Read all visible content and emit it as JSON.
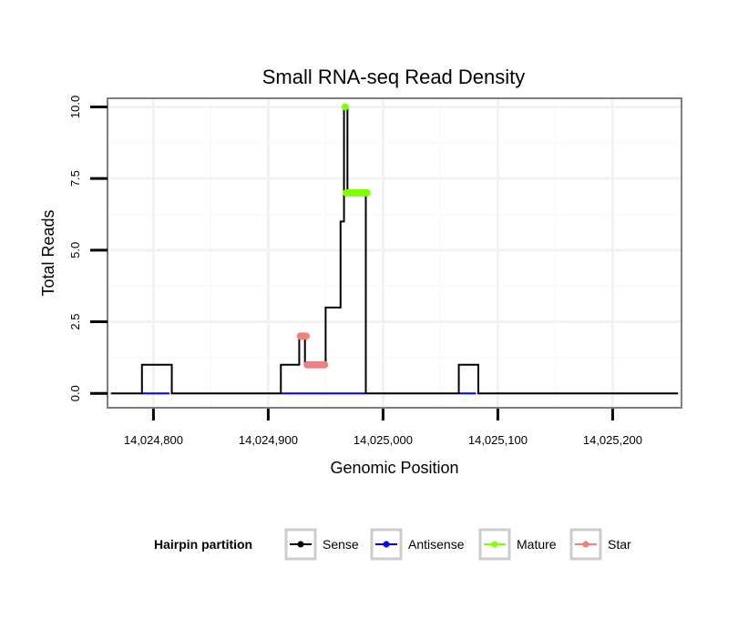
{
  "chart_data": {
    "type": "line",
    "title": "Small RNA-seq Read Density",
    "xlabel": "Genomic Position",
    "ylabel": "Total Reads",
    "xlim": [
      14024760,
      14025260
    ],
    "ylim": [
      -0.5,
      10.3
    ],
    "x_ticks": [
      14024800,
      14024900,
      14025000,
      14025100,
      14025200
    ],
    "x_tick_labels": [
      "14,024,800",
      "14,024,900",
      "14,025,000",
      "14,025,100",
      "14,025,200"
    ],
    "y_ticks": [
      0,
      2.5,
      5,
      7.5,
      10
    ],
    "y_tick_labels": [
      "0.0",
      "2.5",
      "5.0",
      "7.5",
      "10.0"
    ],
    "grid": true,
    "legend": {
      "title": "Hairpin partition",
      "position": "bottom",
      "entries": [
        "Sense",
        "Antisense",
        "Mature",
        "Star"
      ]
    },
    "series": [
      {
        "name": "Sense",
        "color": "#000000",
        "marker": "line",
        "points": [
          [
            14024763,
            0
          ],
          [
            14024790,
            0
          ],
          [
            14024790,
            1
          ],
          [
            14024816,
            1
          ],
          [
            14024816,
            0
          ],
          [
            14024911,
            0
          ],
          [
            14024911,
            1
          ],
          [
            14024927,
            1
          ],
          [
            14024927,
            2
          ],
          [
            14024932,
            2
          ],
          [
            14024932,
            1
          ],
          [
            14024950,
            1
          ],
          [
            14024950,
            3
          ],
          [
            14024963,
            3
          ],
          [
            14024963,
            6
          ],
          [
            14024966,
            6
          ],
          [
            14024966,
            10
          ],
          [
            14024969,
            10
          ],
          [
            14024969,
            7
          ],
          [
            14024985,
            7
          ],
          [
            14024985,
            0
          ],
          [
            14025066,
            0
          ],
          [
            14025066,
            1
          ],
          [
            14025083,
            1
          ],
          [
            14025083,
            0
          ],
          [
            14025257,
            0
          ]
        ]
      },
      {
        "name": "Antisense",
        "color": "#0000ff",
        "marker": "line",
        "segments": [
          [
            [
              14024790,
              0
            ],
            [
              14024814,
              0
            ]
          ],
          [
            [
              14024911,
              0
            ],
            [
              14024985,
              0
            ]
          ],
          [
            [
              14025066,
              0
            ],
            [
              14025081,
              0
            ]
          ]
        ]
      },
      {
        "name": "Mature",
        "color": "#7fff00",
        "marker": "points",
        "points": [
          [
            14024967,
            10
          ],
          [
            14024968,
            7
          ],
          [
            14024970,
            7
          ],
          [
            14024972,
            7
          ],
          [
            14024974,
            7
          ],
          [
            14024976,
            7
          ],
          [
            14024978,
            7
          ],
          [
            14024980,
            7
          ],
          [
            14024982,
            7
          ],
          [
            14024984,
            7
          ],
          [
            14024986,
            7
          ]
        ]
      },
      {
        "name": "Star",
        "color": "#f08080",
        "marker": "points",
        "points": [
          [
            14024928,
            2
          ],
          [
            14024929,
            2
          ],
          [
            14024931,
            2
          ],
          [
            14024933,
            2
          ],
          [
            14024934,
            1
          ],
          [
            14024936,
            1
          ],
          [
            14024938,
            1
          ],
          [
            14024940,
            1
          ],
          [
            14024942,
            1
          ],
          [
            14024944,
            1
          ],
          [
            14024946,
            1
          ],
          [
            14024948,
            1
          ],
          [
            14024949,
            1
          ]
        ]
      }
    ]
  }
}
